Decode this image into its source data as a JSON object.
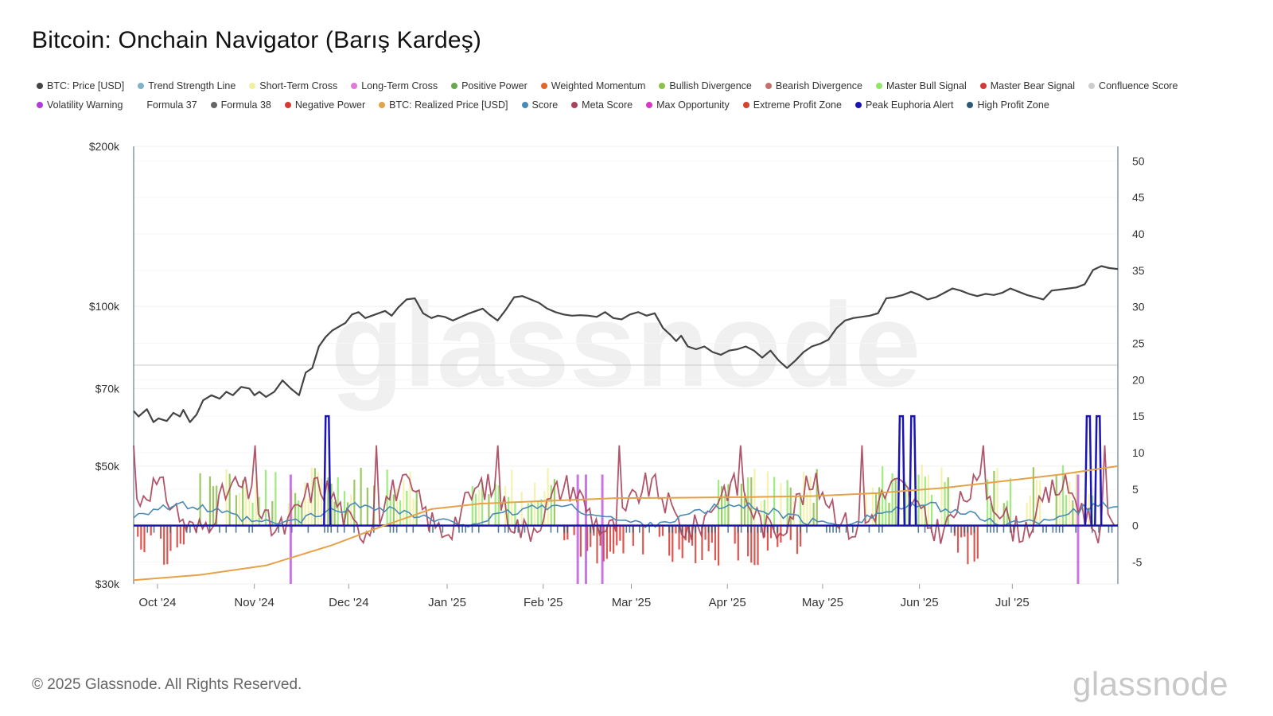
{
  "title": "Bitcoin: Onchain Navigator (Barış Kardeş)",
  "legend": [
    {
      "label": "BTC: Price [USD]",
      "color": "#444444"
    },
    {
      "label": "Trend Strength Line",
      "color": "#7fb2c9"
    },
    {
      "label": "Short-Term Cross",
      "color": "#f2f0a0"
    },
    {
      "label": "Long-Term Cross",
      "color": "#e07ad6"
    },
    {
      "label": "Positive Power",
      "color": "#6aa84f"
    },
    {
      "label": "Weighted Momentum",
      "color": "#e0662e"
    },
    {
      "label": "Bullish Divergence",
      "color": "#8cc04a"
    },
    {
      "label": "Bearish Divergence",
      "color": "#c2706b"
    },
    {
      "label": "Master Bull Signal",
      "color": "#8ee866"
    },
    {
      "label": "Master Bear Signal",
      "color": "#d23a3a"
    },
    {
      "label": "Confluence Score",
      "color": "#cccccc"
    },
    {
      "label": "Volatility Warning",
      "color": "#b13dd6"
    },
    {
      "label": "Formula 37",
      "color": "#ffffff"
    },
    {
      "label": "Formula 38",
      "color": "#666666"
    },
    {
      "label": "Negative Power",
      "color": "#d63a34"
    },
    {
      "label": "BTC: Realized Price [USD]",
      "color": "#e4a24a"
    },
    {
      "label": "Score",
      "color": "#4a8ab5"
    },
    {
      "label": "Meta Score",
      "color": "#a8435a"
    },
    {
      "label": "Max Opportunity",
      "color": "#d43ac9"
    },
    {
      "label": "Extreme Profit Zone",
      "color": "#d6402e"
    },
    {
      "label": "Peak Euphoria Alert",
      "color": "#1a14b8"
    },
    {
      "label": "High Profit Zone",
      "color": "#2e5a7a"
    }
  ],
  "chart_data": {
    "type": "line",
    "title": "Bitcoin: Onchain Navigator (Barış Kardeş)",
    "x_ticks": [
      "Oct '24",
      "Nov '24",
      "Dec '24",
      "Jan '25",
      "Feb '25",
      "Mar '25",
      "Apr '25",
      "May '25",
      "Jun '25",
      "Jul '25"
    ],
    "y_left": {
      "scale": "log",
      "ylim": [
        30000,
        200000
      ],
      "ticks": [
        200000,
        100000,
        70000,
        50000,
        30000
      ],
      "tick_labels": [
        "$200k",
        "$100k",
        "$70k",
        "$50k",
        "$30k"
      ]
    },
    "y_right": {
      "scale": "linear",
      "ylim": [
        -8,
        52
      ],
      "ticks": [
        50,
        45,
        40,
        35,
        30,
        25,
        20,
        15,
        10,
        5,
        0,
        -5
      ],
      "tick_labels": [
        "50",
        "45",
        "40",
        "35",
        "30",
        "25",
        "20",
        "15",
        "10",
        "5",
        "0",
        "-5"
      ]
    },
    "x_range_days": [
      0,
      298
    ],
    "reference_line_right": 22,
    "series": [
      {
        "name": "BTC: Price [USD]",
        "axis": "left",
        "color": "#444444",
        "points": [
          [
            0,
            63500
          ],
          [
            3,
            62000
          ],
          [
            8,
            64000
          ],
          [
            12,
            60500
          ],
          [
            15,
            61500
          ],
          [
            20,
            60800
          ],
          [
            24,
            63000
          ],
          [
            28,
            62000
          ],
          [
            30,
            63800
          ],
          [
            34,
            60500
          ],
          [
            38,
            62500
          ],
          [
            42,
            66500
          ],
          [
            47,
            68000
          ],
          [
            52,
            67000
          ],
          [
            56,
            69000
          ],
          [
            60,
            68000
          ],
          [
            65,
            70500
          ],
          [
            70,
            70000
          ],
          [
            73,
            68000
          ],
          [
            76,
            69000
          ],
          [
            80,
            67500
          ],
          [
            85,
            69000
          ],
          [
            90,
            72500
          ],
          [
            95,
            70000
          ],
          [
            100,
            68000
          ],
          [
            104,
            75000
          ],
          [
            108,
            76500
          ],
          [
            112,
            84000
          ],
          [
            116,
            87500
          ],
          [
            120,
            90000
          ],
          [
            124,
            91500
          ],
          [
            128,
            93000
          ],
          [
            132,
            96500
          ],
          [
            136,
            97500
          ],
          [
            140,
            95000
          ],
          [
            144,
            96000
          ],
          [
            148,
            97000
          ],
          [
            152,
            98000
          ],
          [
            156,
            96000
          ],
          [
            160,
            99500
          ],
          [
            165,
            103000
          ],
          [
            170,
            103500
          ],
          [
            175,
            97000
          ],
          [
            180,
            95000
          ],
          [
            184,
            96000
          ],
          [
            188,
            95500
          ],
          [
            193,
            94000
          ],
          [
            198,
            95500
          ],
          [
            203,
            97000
          ],
          [
            207,
            98000
          ],
          [
            211,
            99000
          ],
          [
            215,
            96500
          ],
          [
            220,
            94000
          ],
          [
            225,
            98500
          ],
          [
            230,
            104000
          ],
          [
            235,
            104500
          ],
          [
            240,
            103000
          ],
          [
            245,
            101500
          ],
          [
            250,
            99000
          ],
          [
            255,
            97500
          ],
          [
            260,
            96500
          ],
          [
            265,
            96000
          ],
          [
            270,
            96200
          ],
          [
            275,
            96000
          ],
          [
            280,
            95500
          ],
          [
            285,
            97500
          ],
          [
            290,
            95000
          ],
          [
            295,
            94500
          ],
          [
            300,
            96500
          ],
          [
            305,
            97500
          ],
          [
            310,
            96000
          ],
          [
            315,
            97000
          ],
          [
            320,
            91000
          ],
          [
            325,
            88000
          ],
          [
            328,
            86000
          ],
          [
            331,
            88000
          ],
          [
            335,
            84000
          ],
          [
            340,
            83000
          ],
          [
            345,
            84000
          ],
          [
            350,
            82000
          ],
          [
            355,
            81000
          ],
          [
            360,
            82500
          ],
          [
            365,
            83000
          ],
          [
            370,
            84000
          ],
          [
            375,
            82500
          ],
          [
            380,
            80000
          ],
          [
            385,
            82500
          ],
          [
            390,
            79000
          ],
          [
            395,
            76500
          ],
          [
            400,
            79000
          ],
          [
            405,
            82000
          ],
          [
            410,
            84000
          ],
          [
            415,
            85000
          ],
          [
            420,
            86500
          ],
          [
            425,
            91000
          ],
          [
            430,
            94000
          ],
          [
            435,
            95000
          ],
          [
            440,
            95500
          ],
          [
            445,
            96000
          ],
          [
            450,
            97000
          ],
          [
            455,
            103500
          ],
          [
            460,
            104000
          ],
          [
            465,
            105000
          ],
          [
            470,
            106500
          ],
          [
            475,
            105000
          ],
          [
            480,
            103000
          ],
          [
            485,
            104000
          ],
          [
            490,
            106000
          ],
          [
            495,
            108000
          ],
          [
            500,
            107000
          ],
          [
            505,
            105500
          ],
          [
            510,
            104500
          ],
          [
            515,
            105500
          ],
          [
            520,
            105000
          ],
          [
            525,
            106000
          ],
          [
            530,
            108000
          ],
          [
            535,
            106500
          ],
          [
            540,
            105000
          ],
          [
            545,
            104000
          ],
          [
            550,
            103000
          ],
          [
            555,
            107000
          ],
          [
            560,
            107500
          ],
          [
            565,
            108000
          ],
          [
            570,
            108500
          ],
          [
            575,
            110000
          ],
          [
            580,
            117000
          ],
          [
            585,
            119000
          ],
          [
            590,
            118000
          ],
          [
            595,
            117500
          ]
        ]
      },
      {
        "name": "BTC: Realized Price [USD]",
        "axis": "left",
        "color": "#e4a24a",
        "points": [
          [
            0,
            30500
          ],
          [
            40,
            31200
          ],
          [
            80,
            32500
          ],
          [
            120,
            35500
          ],
          [
            150,
            38500
          ],
          [
            180,
            41500
          ],
          [
            210,
            42500
          ],
          [
            250,
            43000
          ],
          [
            290,
            43500
          ],
          [
            330,
            43600
          ],
          [
            370,
            43700
          ],
          [
            410,
            43900
          ],
          [
            450,
            44500
          ],
          [
            490,
            45500
          ],
          [
            530,
            47000
          ],
          [
            560,
            48200
          ],
          [
            595,
            50000
          ]
        ]
      }
    ],
    "signal_overlay": {
      "description": "Dense histogram-style signal bars around the zero line of the right axis",
      "positive_signal_colors": [
        "#8ee866",
        "#8cc04a",
        "#f2f0a0"
      ],
      "negative_signal_colors": [
        "#d63a34",
        "#a8435a"
      ],
      "peak_euphoria_alert_spikes_at_day": [
        118,
        468,
        475,
        582,
        588
      ],
      "peak_euphoria_alert_peak_value": 15,
      "volatility_warning_at_day": [
        95,
        270,
        275,
        285,
        575
      ],
      "meta_score_peak_value": 11
    }
  },
  "footer": {
    "copyright": "© 2025 Glassnode. All Rights Reserved.",
    "brand": "glassnode",
    "watermark": "glassnode"
  }
}
